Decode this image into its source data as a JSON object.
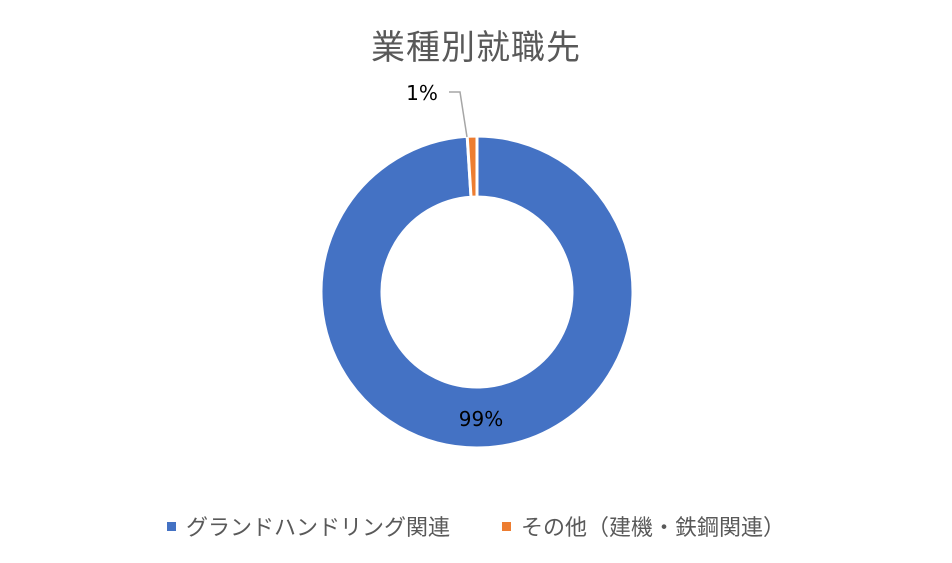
{
  "chart_data": {
    "type": "pie",
    "variant": "doughnut",
    "title": "業種別就職先",
    "categories": [
      "グランドハンドリング関連",
      "その他（建機・鉄鋼関連）"
    ],
    "values": [
      99,
      1
    ],
    "labels": [
      "99%",
      "1%"
    ],
    "colors": [
      "#4472C4",
      "#ED7D31"
    ],
    "legend": "bottom"
  }
}
